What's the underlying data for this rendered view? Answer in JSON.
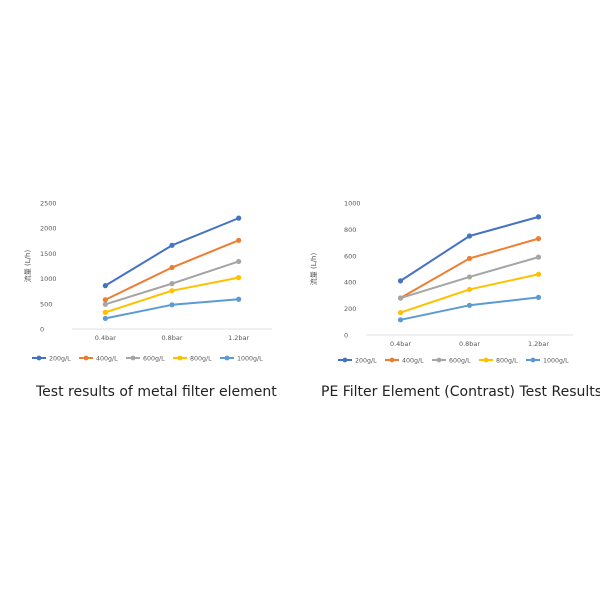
{
  "charts": [
    {
      "caption": "Test results of metal filter element",
      "ylabel": "流量 (L/h)",
      "chart_data": {
        "type": "line",
        "categories": [
          "0.4bar",
          "0.8bar",
          "1.2bar"
        ],
        "ylim": [
          0,
          2500
        ],
        "yticks": [
          0,
          500,
          1000,
          1500,
          2000,
          2500
        ],
        "grid": false,
        "legend": "bottom",
        "series": [
          {
            "name": "200g/L",
            "color": "#4472c4",
            "values": [
              860,
              1660,
              2200
            ]
          },
          {
            "name": "400g/L",
            "color": "#ed7d31",
            "values": [
              580,
              1220,
              1760
            ]
          },
          {
            "name": "600g/L",
            "color": "#a5a5a5",
            "values": [
              490,
              900,
              1340
            ]
          },
          {
            "name": "800g/L",
            "color": "#ffc000",
            "values": [
              330,
              760,
              1020
            ]
          },
          {
            "name": "1000g/L",
            "color": "#5b9bd5",
            "values": [
              210,
              480,
              590
            ]
          }
        ]
      }
    },
    {
      "caption": "PE Filter Element (Contrast) Test Results",
      "ylabel": "流量 (L/h)",
      "chart_data": {
        "type": "line",
        "categories": [
          "0.4bar",
          "0.8bar",
          "1.2bar"
        ],
        "ylim": [
          0,
          1000
        ],
        "yticks": [
          0,
          200,
          400,
          600,
          800,
          1000
        ],
        "grid": false,
        "legend": "bottom",
        "series": [
          {
            "name": "200g/L",
            "color": "#4472c4",
            "values": [
              410,
              750,
              895
            ]
          },
          {
            "name": "400g/L",
            "color": "#ed7d31",
            "values": [
              280,
              580,
              730
            ]
          },
          {
            "name": "600g/L",
            "color": "#a5a5a5",
            "values": [
              280,
              440,
              590
            ]
          },
          {
            "name": "800g/L",
            "color": "#ffc000",
            "values": [
              170,
              345,
              460
            ]
          },
          {
            "name": "1000g/L",
            "color": "#5b9bd5",
            "values": [
              115,
              225,
              285
            ]
          }
        ]
      }
    }
  ]
}
